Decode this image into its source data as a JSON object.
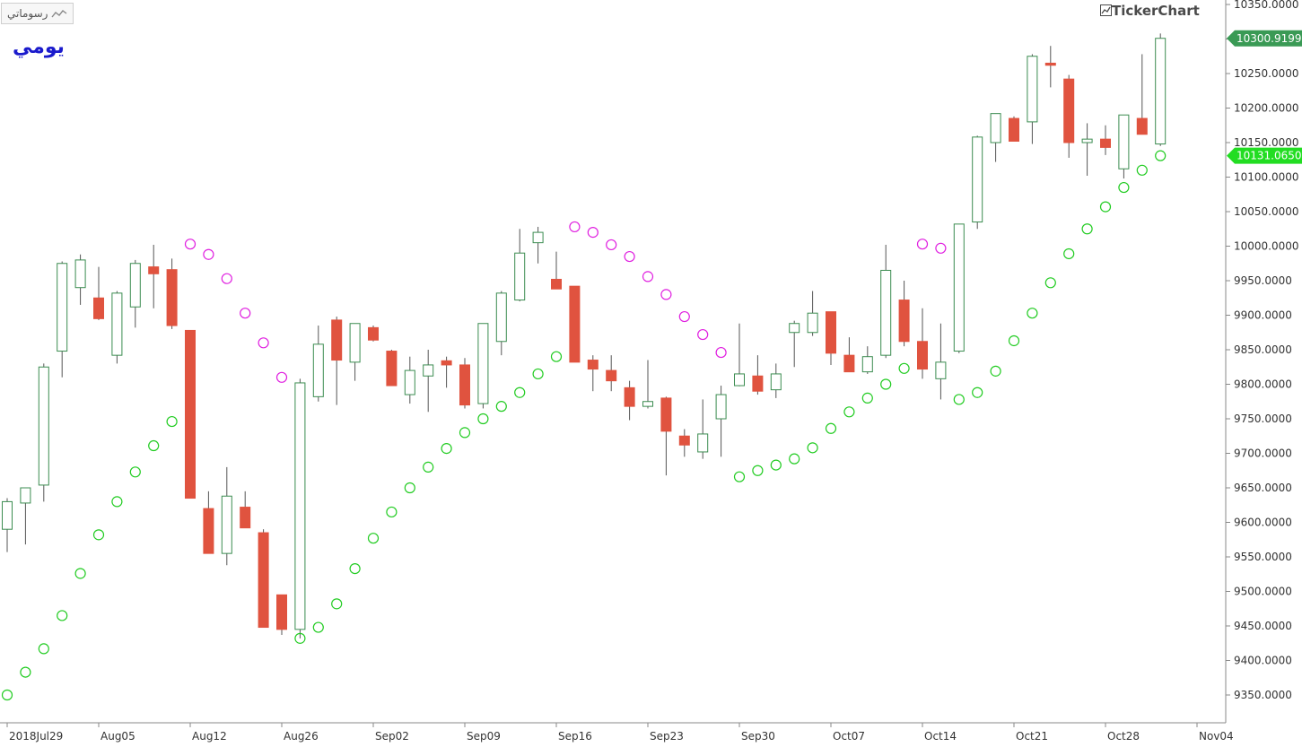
{
  "toolbar": {
    "badge_label": "رسوماتي",
    "badge_icon": "line-chart-icon"
  },
  "period_label": "يومي",
  "brand": {
    "name": "TickerChart",
    "icon": "chart-box-icon"
  },
  "colors": {
    "up": "#3b8c50",
    "down": "#e0533f",
    "sar_below": "#22cc22",
    "sar_above": "#e020e0",
    "last_price_bg": "#3a9a55",
    "sar_badge_bg": "#22dd22"
  },
  "price_labels": {
    "last_price": "10300.9199",
    "sar_value": "10131.0650"
  },
  "chart_data": {
    "type": "candlestick",
    "title": "",
    "xlabel": "",
    "ylabel": "",
    "ylim": [
      9300,
      10355
    ],
    "yticks": [
      "9350.0000",
      "9400.0000",
      "9450.0000",
      "9500.0000",
      "9550.0000",
      "9600.0000",
      "9650.0000",
      "9700.0000",
      "9750.0000",
      "9800.0000",
      "9850.0000",
      "9900.0000",
      "9950.0000",
      "10000.0000",
      "10050.0000",
      "10100.0000",
      "10150.0000",
      "10200.0000",
      "10250.0000",
      "10300.0000",
      "10350.0000"
    ],
    "xticks": [
      {
        "label": "2018Jul29",
        "bar": 0
      },
      {
        "label": "Aug05",
        "bar": 5
      },
      {
        "label": "Aug12",
        "bar": 10
      },
      {
        "label": "Aug26",
        "bar": 15
      },
      {
        "label": "Sep02",
        "bar": 20
      },
      {
        "label": "Sep09",
        "bar": 25
      },
      {
        "label": "Sep16",
        "bar": 30
      },
      {
        "label": "Sep23",
        "bar": 35
      },
      {
        "label": "Sep30",
        "bar": 40
      },
      {
        "label": "Oct07",
        "bar": 45
      },
      {
        "label": "Oct14",
        "bar": 50
      },
      {
        "label": "Oct21",
        "bar": 55
      },
      {
        "label": "Oct28",
        "bar": 60
      },
      {
        "label": "Nov04",
        "bar": 65
      }
    ],
    "candles": [
      {
        "o": 9590,
        "h": 9635,
        "l": 9557,
        "c": 9630
      },
      {
        "o": 9628,
        "h": 9650,
        "l": 9568,
        "c": 9650
      },
      {
        "o": 9654,
        "h": 9830,
        "l": 9630,
        "c": 9825
      },
      {
        "o": 9848,
        "h": 9978,
        "l": 9810,
        "c": 9975
      },
      {
        "o": 9940,
        "h": 9988,
        "l": 9915,
        "c": 9980
      },
      {
        "o": 9925,
        "h": 9970,
        "l": 9893,
        "c": 9895
      },
      {
        "o": 9842,
        "h": 9935,
        "l": 9830,
        "c": 9932
      },
      {
        "o": 9912,
        "h": 9980,
        "l": 9882,
        "c": 9975
      },
      {
        "o": 9970,
        "h": 10002,
        "l": 9910,
        "c": 9960
      },
      {
        "o": 9966,
        "h": 9982,
        "l": 9880,
        "c": 9885
      },
      {
        "o": 9878,
        "h": 9878,
        "l": 9635,
        "c": 9635
      },
      {
        "o": 9620,
        "h": 9645,
        "l": 9555,
        "c": 9555
      },
      {
        "o": 9555,
        "h": 9680,
        "l": 9538,
        "c": 9638
      },
      {
        "o": 9622,
        "h": 9645,
        "l": 9592,
        "c": 9592
      },
      {
        "o": 9585,
        "h": 9590,
        "l": 9448,
        "c": 9448
      },
      {
        "o": 9495,
        "h": 9495,
        "l": 9437,
        "c": 9445
      },
      {
        "o": 9445,
        "h": 9808,
        "l": 9432,
        "c": 9802
      },
      {
        "o": 9782,
        "h": 9885,
        "l": 9775,
        "c": 9858
      },
      {
        "o": 9893,
        "h": 9898,
        "l": 9770,
        "c": 9835
      },
      {
        "o": 9832,
        "h": 9888,
        "l": 9805,
        "c": 9888
      },
      {
        "o": 9882,
        "h": 9885,
        "l": 9862,
        "c": 9864
      },
      {
        "o": 9848,
        "h": 9850,
        "l": 9798,
        "c": 9798
      },
      {
        "o": 9785,
        "h": 9840,
        "l": 9772,
        "c": 9820
      },
      {
        "o": 9812,
        "h": 9850,
        "l": 9760,
        "c": 9828
      },
      {
        "o": 9834,
        "h": 9840,
        "l": 9795,
        "c": 9828
      },
      {
        "o": 9828,
        "h": 9838,
        "l": 9765,
        "c": 9770
      },
      {
        "o": 9772,
        "h": 9888,
        "l": 9765,
        "c": 9888
      },
      {
        "o": 9862,
        "h": 9935,
        "l": 9842,
        "c": 9932
      },
      {
        "o": 9922,
        "h": 10025,
        "l": 9920,
        "c": 9990
      },
      {
        "o": 10005,
        "h": 10028,
        "l": 9975,
        "c": 10020
      },
      {
        "o": 9952,
        "h": 9992,
        "l": 9938,
        "c": 9938
      },
      {
        "o": 9942,
        "h": 9942,
        "l": 9832,
        "c": 9832
      },
      {
        "o": 9835,
        "h": 9842,
        "l": 9790,
        "c": 9822
      },
      {
        "o": 9820,
        "h": 9842,
        "l": 9790,
        "c": 9805
      },
      {
        "o": 9795,
        "h": 9805,
        "l": 9748,
        "c": 9768
      },
      {
        "o": 9768,
        "h": 9835,
        "l": 9765,
        "c": 9775
      },
      {
        "o": 9780,
        "h": 9782,
        "l": 9668,
        "c": 9732
      },
      {
        "o": 9725,
        "h": 9735,
        "l": 9695,
        "c": 9712
      },
      {
        "o": 9702,
        "h": 9778,
        "l": 9692,
        "c": 9728
      },
      {
        "o": 9750,
        "h": 9798,
        "l": 9695,
        "c": 9785
      },
      {
        "o": 9798,
        "h": 9888,
        "l": 9797,
        "c": 9815
      },
      {
        "o": 9812,
        "h": 9842,
        "l": 9785,
        "c": 9790
      },
      {
        "o": 9792,
        "h": 9830,
        "l": 9780,
        "c": 9815
      },
      {
        "o": 9875,
        "h": 9892,
        "l": 9825,
        "c": 9888
      },
      {
        "o": 9875,
        "h": 9935,
        "l": 9870,
        "c": 9903
      },
      {
        "o": 9905,
        "h": 9905,
        "l": 9828,
        "c": 9845
      },
      {
        "o": 9842,
        "h": 9868,
        "l": 9818,
        "c": 9818
      },
      {
        "o": 9818,
        "h": 9855,
        "l": 9815,
        "c": 9840
      },
      {
        "o": 9842,
        "h": 10002,
        "l": 9838,
        "c": 9965
      },
      {
        "o": 9922,
        "h": 9950,
        "l": 9855,
        "c": 9862
      },
      {
        "o": 9862,
        "h": 9910,
        "l": 9808,
        "c": 9822
      },
      {
        "o": 9808,
        "h": 9888,
        "l": 9778,
        "c": 9832
      },
      {
        "o": 9848,
        "h": 10032,
        "l": 9845,
        "c": 10032
      },
      {
        "o": 10035,
        "h": 10160,
        "l": 10025,
        "c": 10158
      },
      {
        "o": 10150,
        "h": 10192,
        "l": 10122,
        "c": 10192
      },
      {
        "o": 10185,
        "h": 10188,
        "l": 10152,
        "c": 10152
      },
      {
        "o": 10180,
        "h": 10278,
        "l": 10148,
        "c": 10275
      },
      {
        "o": 10265,
        "h": 10290,
        "l": 10230,
        "c": 10262
      },
      {
        "o": 10242,
        "h": 10248,
        "l": 10128,
        "c": 10150
      },
      {
        "o": 10150,
        "h": 10178,
        "l": 10102,
        "c": 10155
      },
      {
        "o": 10155,
        "h": 10175,
        "l": 10132,
        "c": 10143
      },
      {
        "o": 10112,
        "h": 10190,
        "l": 10098,
        "c": 10190
      },
      {
        "o": 10185,
        "h": 10278,
        "l": 10162,
        "c": 10162
      },
      {
        "o": 10148,
        "h": 10308,
        "l": 10145,
        "c": 10301
      }
    ],
    "sar": {
      "name": "",
      "below": [
        {
          "bar": 0,
          "v": 9350
        },
        {
          "bar": 1,
          "v": 9383
        },
        {
          "bar": 2,
          "v": 9417
        },
        {
          "bar": 3,
          "v": 9465
        },
        {
          "bar": 4,
          "v": 9526
        },
        {
          "bar": 5,
          "v": 9582
        },
        {
          "bar": 6,
          "v": 9630
        },
        {
          "bar": 7,
          "v": 9673
        },
        {
          "bar": 8,
          "v": 9711
        },
        {
          "bar": 9,
          "v": 9746
        },
        {
          "bar": 16,
          "v": 9432
        },
        {
          "bar": 17,
          "v": 9448
        },
        {
          "bar": 18,
          "v": 9482
        },
        {
          "bar": 19,
          "v": 9533
        },
        {
          "bar": 20,
          "v": 9577
        },
        {
          "bar": 21,
          "v": 9615
        },
        {
          "bar": 22,
          "v": 9650
        },
        {
          "bar": 23,
          "v": 9680
        },
        {
          "bar": 24,
          "v": 9707
        },
        {
          "bar": 25,
          "v": 9730
        },
        {
          "bar": 26,
          "v": 9750
        },
        {
          "bar": 27,
          "v": 9768
        },
        {
          "bar": 28,
          "v": 9788
        },
        {
          "bar": 29,
          "v": 9815
        },
        {
          "bar": 30,
          "v": 9840
        },
        {
          "bar": 40,
          "v": 9666
        },
        {
          "bar": 41,
          "v": 9675
        },
        {
          "bar": 42,
          "v": 9683
        },
        {
          "bar": 43,
          "v": 9692
        },
        {
          "bar": 44,
          "v": 9708
        },
        {
          "bar": 45,
          "v": 9736
        },
        {
          "bar": 46,
          "v": 9760
        },
        {
          "bar": 47,
          "v": 9780
        },
        {
          "bar": 48,
          "v": 9800
        },
        {
          "bar": 49,
          "v": 9823
        },
        {
          "bar": 52,
          "v": 9778
        },
        {
          "bar": 53,
          "v": 9788
        },
        {
          "bar": 54,
          "v": 9819
        },
        {
          "bar": 55,
          "v": 9863
        },
        {
          "bar": 56,
          "v": 9903
        },
        {
          "bar": 57,
          "v": 9947
        },
        {
          "bar": 58,
          "v": 9989
        },
        {
          "bar": 59,
          "v": 10025
        },
        {
          "bar": 60,
          "v": 10057
        },
        {
          "bar": 61,
          "v": 10085
        },
        {
          "bar": 62,
          "v": 10110
        },
        {
          "bar": 63,
          "v": 10131
        }
      ],
      "above": [
        {
          "bar": 10,
          "v": 10003
        },
        {
          "bar": 11,
          "v": 9988
        },
        {
          "bar": 12,
          "v": 9953
        },
        {
          "bar": 13,
          "v": 9903
        },
        {
          "bar": 14,
          "v": 9860
        },
        {
          "bar": 15,
          "v": 9810
        },
        {
          "bar": 31,
          "v": 10028
        },
        {
          "bar": 32,
          "v": 10020
        },
        {
          "bar": 33,
          "v": 10002
        },
        {
          "bar": 34,
          "v": 9985
        },
        {
          "bar": 35,
          "v": 9956
        },
        {
          "bar": 36,
          "v": 9930
        },
        {
          "bar": 37,
          "v": 9898
        },
        {
          "bar": 38,
          "v": 9872
        },
        {
          "bar": 39,
          "v": 9846
        },
        {
          "bar": 50,
          "v": 10003
        },
        {
          "bar": 51,
          "v": 9997
        }
      ]
    },
    "grid": false,
    "legend": "none"
  }
}
